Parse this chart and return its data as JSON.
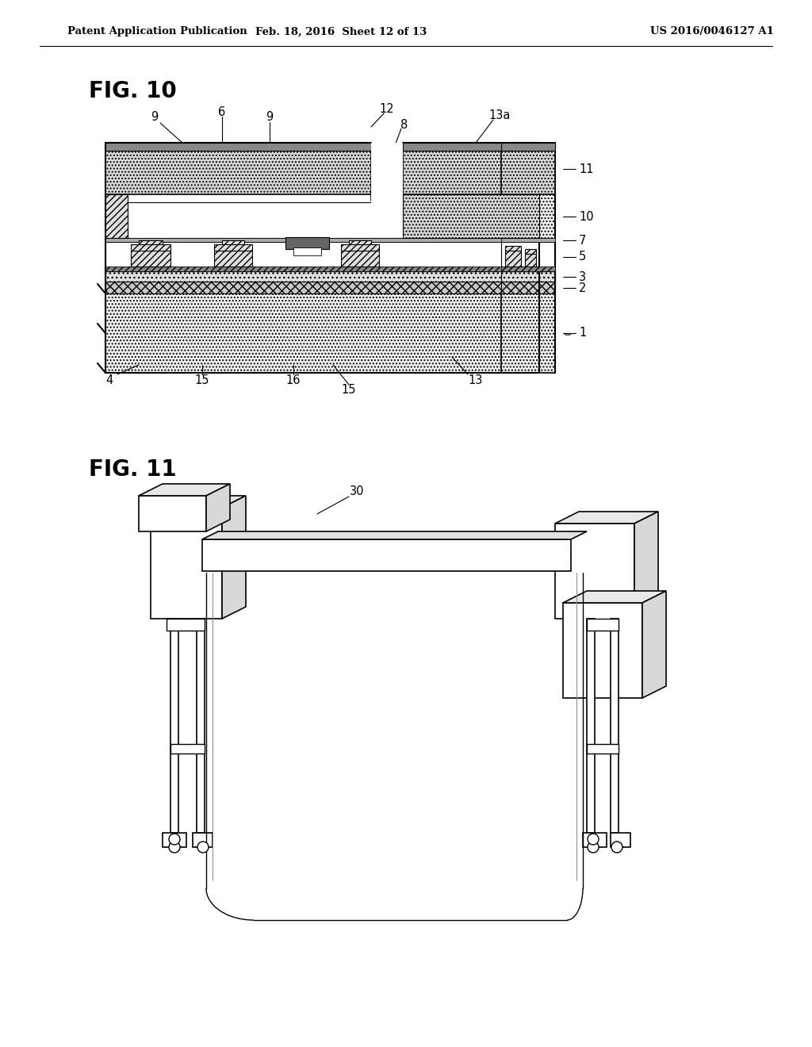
{
  "bg_color": "#ffffff",
  "header_left": "Patent Application Publication",
  "header_mid": "Feb. 18, 2016  Sheet 12 of 13",
  "header_right": "US 2016/0046127 A1",
  "fig10_label": "FIG. 10",
  "fig11_label": "FIG. 11",
  "label_30": "30"
}
